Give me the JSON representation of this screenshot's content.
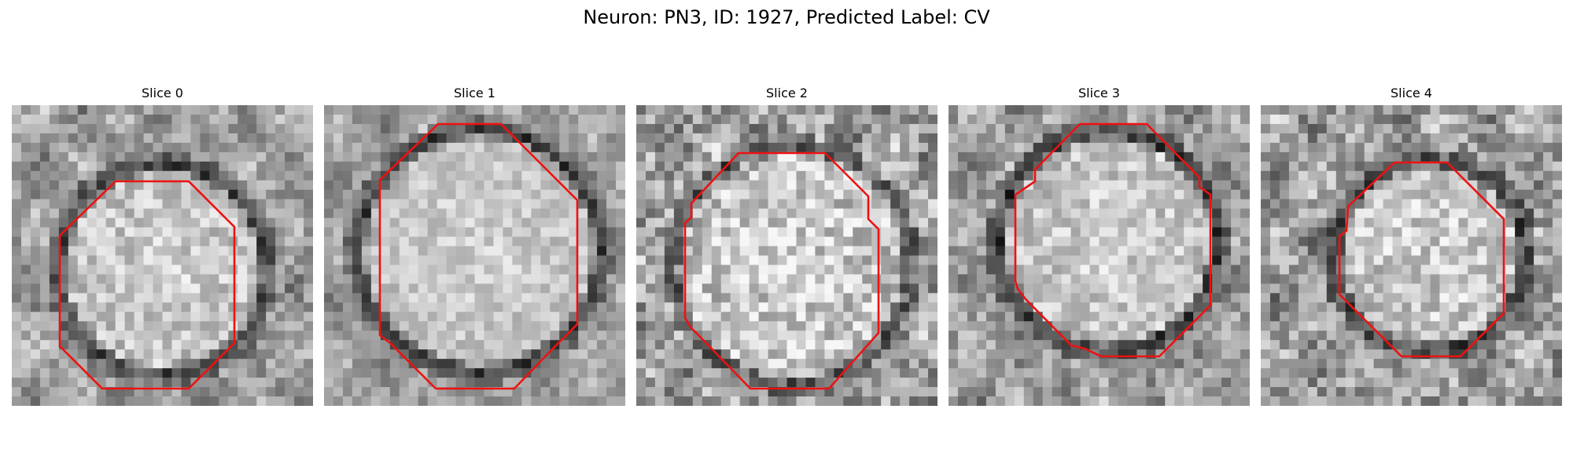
{
  "figure": {
    "title": "Neuron: PN3, ID: 1927, Predicted Label: CV"
  },
  "colors": {
    "contour": "#ee1111",
    "background": "#ffffff"
  },
  "slices": [
    {
      "title": "Slice 0"
    },
    {
      "title": "Slice 1"
    },
    {
      "title": "Slice 2"
    },
    {
      "title": "Slice 3"
    },
    {
      "title": "Slice 4"
    }
  ]
}
